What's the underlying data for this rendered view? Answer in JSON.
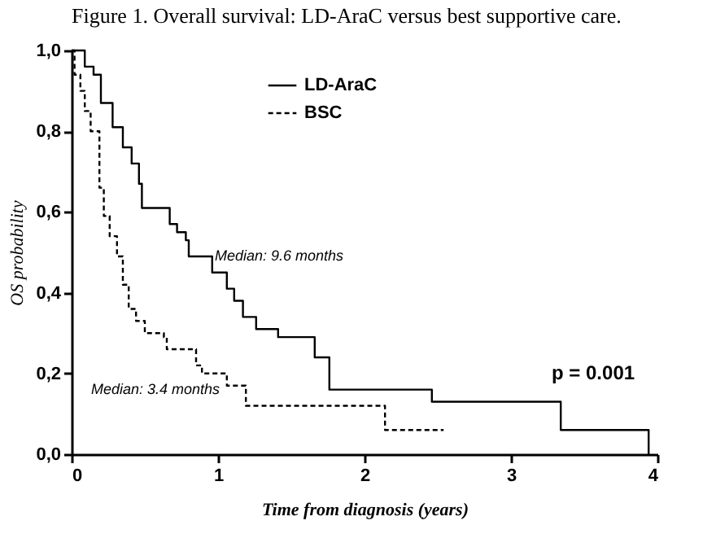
{
  "chart_data": {
    "type": "step",
    "title": "Figure 1. Overall survival: LD-AraC versus best supportive care.",
    "xlabel": "Time from diagnosis (years)",
    "ylabel": "OS probability",
    "xlim": [
      0,
      4
    ],
    "xticks": [
      0,
      1,
      2,
      3,
      4
    ],
    "ylim": [
      0,
      1
    ],
    "yticks": [
      {
        "value": 0,
        "label": "0,0"
      },
      {
        "value": 0.2,
        "label": "0,2"
      },
      {
        "value": 0.4,
        "label": "0,4"
      },
      {
        "value": 0.6,
        "label": "0,6"
      },
      {
        "value": 0.8,
        "label": "0,8"
      },
      {
        "value": 1,
        "label": "1,0"
      }
    ],
    "grid": false,
    "legend": "top left",
    "marker": "none",
    "series": [
      {
        "name": "LD-AraC",
        "color": "#000000",
        "line_style": "solid",
        "x": [
          0,
          0.09,
          0.15,
          0.2,
          0.28,
          0.35,
          0.41,
          0.46,
          0.48,
          0.57,
          0.67,
          0.72,
          0.78,
          0.8,
          0.96,
          1.06,
          1.11,
          1.17,
          1.26,
          1.41,
          1.66,
          1.76,
          2.46,
          3.34,
          3.94
        ],
        "values": [
          1.0,
          0.96,
          0.94,
          0.87,
          0.81,
          0.76,
          0.72,
          0.67,
          0.61,
          0.61,
          0.57,
          0.55,
          0.53,
          0.49,
          0.45,
          0.41,
          0.38,
          0.34,
          0.31,
          0.29,
          0.24,
          0.16,
          0.13,
          0.06,
          0
        ]
      },
      {
        "name": "BSC",
        "color": "#000000",
        "line_style": "dashed",
        "x": [
          0,
          0.02,
          0.06,
          0.09,
          0.13,
          0.19,
          0.22,
          0.26,
          0.31,
          0.35,
          0.39,
          0.44,
          0.5,
          0.63,
          0.65,
          0.85,
          0.89,
          1.06,
          1.19,
          2.14,
          2.54
        ],
        "values": [
          1.0,
          0.94,
          0.9,
          0.85,
          0.8,
          0.66,
          0.59,
          0.54,
          0.49,
          0.42,
          0.36,
          0.33,
          0.3,
          0.29,
          0.26,
          0.22,
          0.2,
          0.17,
          0.12,
          0.06,
          0.06
        ]
      }
    ],
    "annotations": [
      "Median: 9.6 months",
      "Median: 3.4 months",
      "p = 0.001"
    ]
  }
}
